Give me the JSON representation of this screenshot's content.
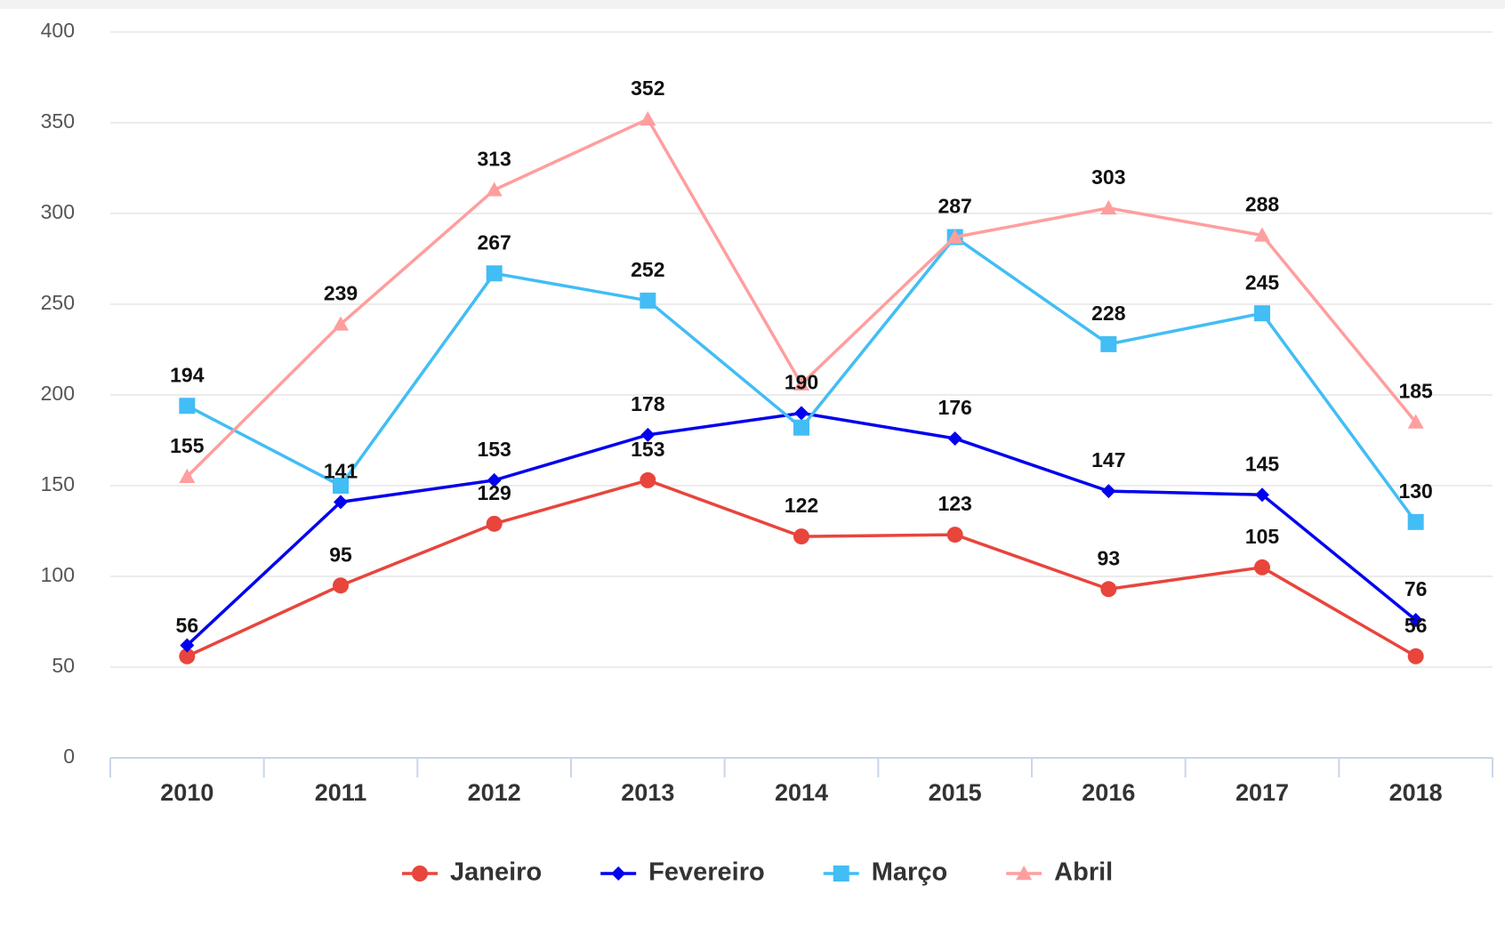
{
  "chart_data": {
    "type": "line",
    "categories": [
      "2010",
      "2011",
      "2012",
      "2013",
      "2014",
      "2015",
      "2016",
      "2017",
      "2018"
    ],
    "series": [
      {
        "name": "Janeiro",
        "color": "#e8453c",
        "marker": "circle",
        "values": [
          56,
          95,
          129,
          153,
          122,
          123,
          93,
          105,
          56
        ],
        "value_labels": [
          "56",
          "95",
          "129",
          "153",
          "122",
          "123",
          "93",
          "105",
          "56"
        ]
      },
      {
        "name": "Fevereiro",
        "color": "#0000ee",
        "marker": "diamond",
        "values": [
          62,
          141,
          153,
          178,
          190,
          176,
          147,
          145,
          76
        ],
        "value_labels": [
          null,
          "141",
          "153",
          "178",
          "190",
          "176",
          "147",
          "145",
          "76"
        ]
      },
      {
        "name": "Março",
        "color": "#42bdf5",
        "marker": "square",
        "values": [
          194,
          150,
          267,
          252,
          182,
          287,
          228,
          245,
          130
        ],
        "value_labels": [
          "194",
          null,
          "267",
          "252",
          null,
          "287",
          "228",
          "245",
          "130"
        ]
      },
      {
        "name": "Abril",
        "color": "#ff9e9e",
        "marker": "triangle",
        "values": [
          155,
          239,
          313,
          352,
          206,
          287,
          303,
          288,
          185
        ],
        "value_labels": [
          "155",
          "239",
          "313",
          "352",
          null,
          null,
          "303",
          "288",
          "185"
        ]
      }
    ],
    "ylim": [
      0,
      400
    ],
    "yticks": [
      0,
      50,
      100,
      150,
      200,
      250,
      300,
      350,
      400
    ],
    "grid": true,
    "legend": "bottom"
  }
}
